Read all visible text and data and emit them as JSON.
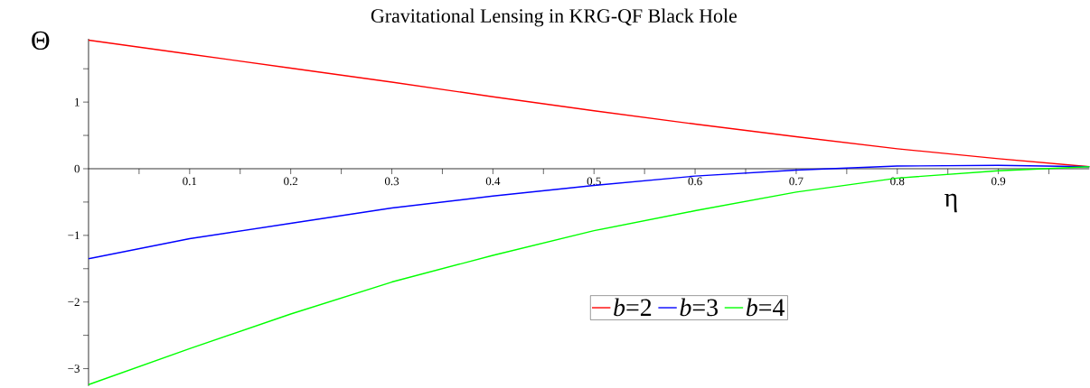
{
  "chart_data": {
    "type": "line",
    "title": "Gravitational Lensing in KRG-QF Black Hole",
    "xlabel": "η",
    "ylabel": "Θ",
    "x": [
      0,
      0.1,
      0.2,
      0.3,
      0.4,
      0.5,
      0.6,
      0.7,
      0.8,
      0.9,
      0.99
    ],
    "series": [
      {
        "name": "*b*=2",
        "color": "#ff0000",
        "values": [
          1.93,
          1.72,
          1.51,
          1.3,
          1.08,
          0.87,
          0.67,
          0.48,
          0.3,
          0.15,
          0.03
        ]
      },
      {
        "name": "*b*=3",
        "color": "#0000ff",
        "values": [
          -1.35,
          -1.05,
          -0.82,
          -0.59,
          -0.41,
          -0.25,
          -0.11,
          -0.02,
          0.04,
          0.05,
          0.03
        ]
      },
      {
        "name": "*b*=4",
        "color": "#00ff00",
        "values": [
          -3.24,
          -2.7,
          -2.18,
          -1.7,
          -1.3,
          -0.93,
          -0.63,
          -0.35,
          -0.14,
          -0.03,
          0.03
        ]
      }
    ],
    "xlim": [
      0,
      0.99
    ],
    "ylim": [
      -3.26,
      1.95
    ],
    "xticks": [
      {
        "value": 0.05,
        "label": null
      },
      0.1,
      {
        "value": 0.15,
        "label": null
      },
      0.2,
      {
        "value": 0.25,
        "label": null
      },
      0.3,
      {
        "value": 0.35,
        "label": null
      },
      0.4,
      {
        "value": 0.45,
        "label": null
      },
      0.5,
      {
        "value": 0.55,
        "label": null
      },
      0.6,
      {
        "value": 0.65,
        "label": null
      },
      0.7,
      {
        "value": 0.75,
        "label": null
      },
      0.8,
      {
        "value": 0.85,
        "label": null
      },
      0.9,
      {
        "value": 0.95,
        "label": null
      }
    ],
    "yticks": [
      {
        "value": -3,
        "label": "−3"
      },
      {
        "value": -2.5,
        "label": null
      },
      {
        "value": -2,
        "label": "−2"
      },
      {
        "value": -1.5,
        "label": null
      },
      {
        "value": -1,
        "label": "−1"
      },
      {
        "value": -0.5,
        "label": null
      },
      0,
      {
        "value": 0.5,
        "label": null
      },
      1,
      {
        "value": 1.5,
        "label": null
      }
    ],
    "legend": "bottom"
  }
}
